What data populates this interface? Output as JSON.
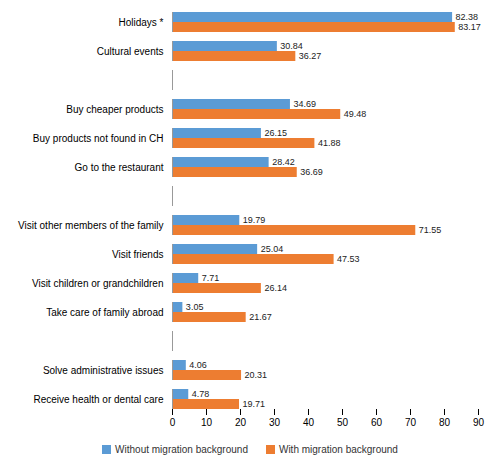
{
  "chart_data": {
    "type": "bar",
    "orientation": "horizontal",
    "categories": [
      "Holidays *",
      "Cultural events",
      null,
      "Buy cheaper products",
      "Buy products not found in CH",
      "Go to the restaurant",
      null,
      "Visit other members of the family",
      "Visit friends",
      "Visit children or grandchildren",
      "Take care of family abroad",
      null,
      "Solve administrative issues",
      "Receive health or dental care"
    ],
    "series": [
      {
        "name": "Without migration background",
        "color": "#5b9bd5",
        "values": [
          82.38,
          30.84,
          null,
          34.69,
          26.15,
          28.42,
          null,
          19.79,
          25.04,
          7.71,
          3.05,
          null,
          4.06,
          4.78
        ]
      },
      {
        "name": "With migration background",
        "color": "#ed7d31",
        "values": [
          83.17,
          36.27,
          null,
          49.48,
          41.88,
          36.69,
          null,
          71.55,
          47.53,
          26.14,
          21.67,
          null,
          20.31,
          19.71
        ]
      }
    ],
    "xlim": [
      0,
      90
    ],
    "xticks": [
      0,
      10,
      20,
      30,
      40,
      50,
      60,
      70,
      80,
      90
    ],
    "grid": false,
    "data_labels": true,
    "legend": "bottom"
  }
}
